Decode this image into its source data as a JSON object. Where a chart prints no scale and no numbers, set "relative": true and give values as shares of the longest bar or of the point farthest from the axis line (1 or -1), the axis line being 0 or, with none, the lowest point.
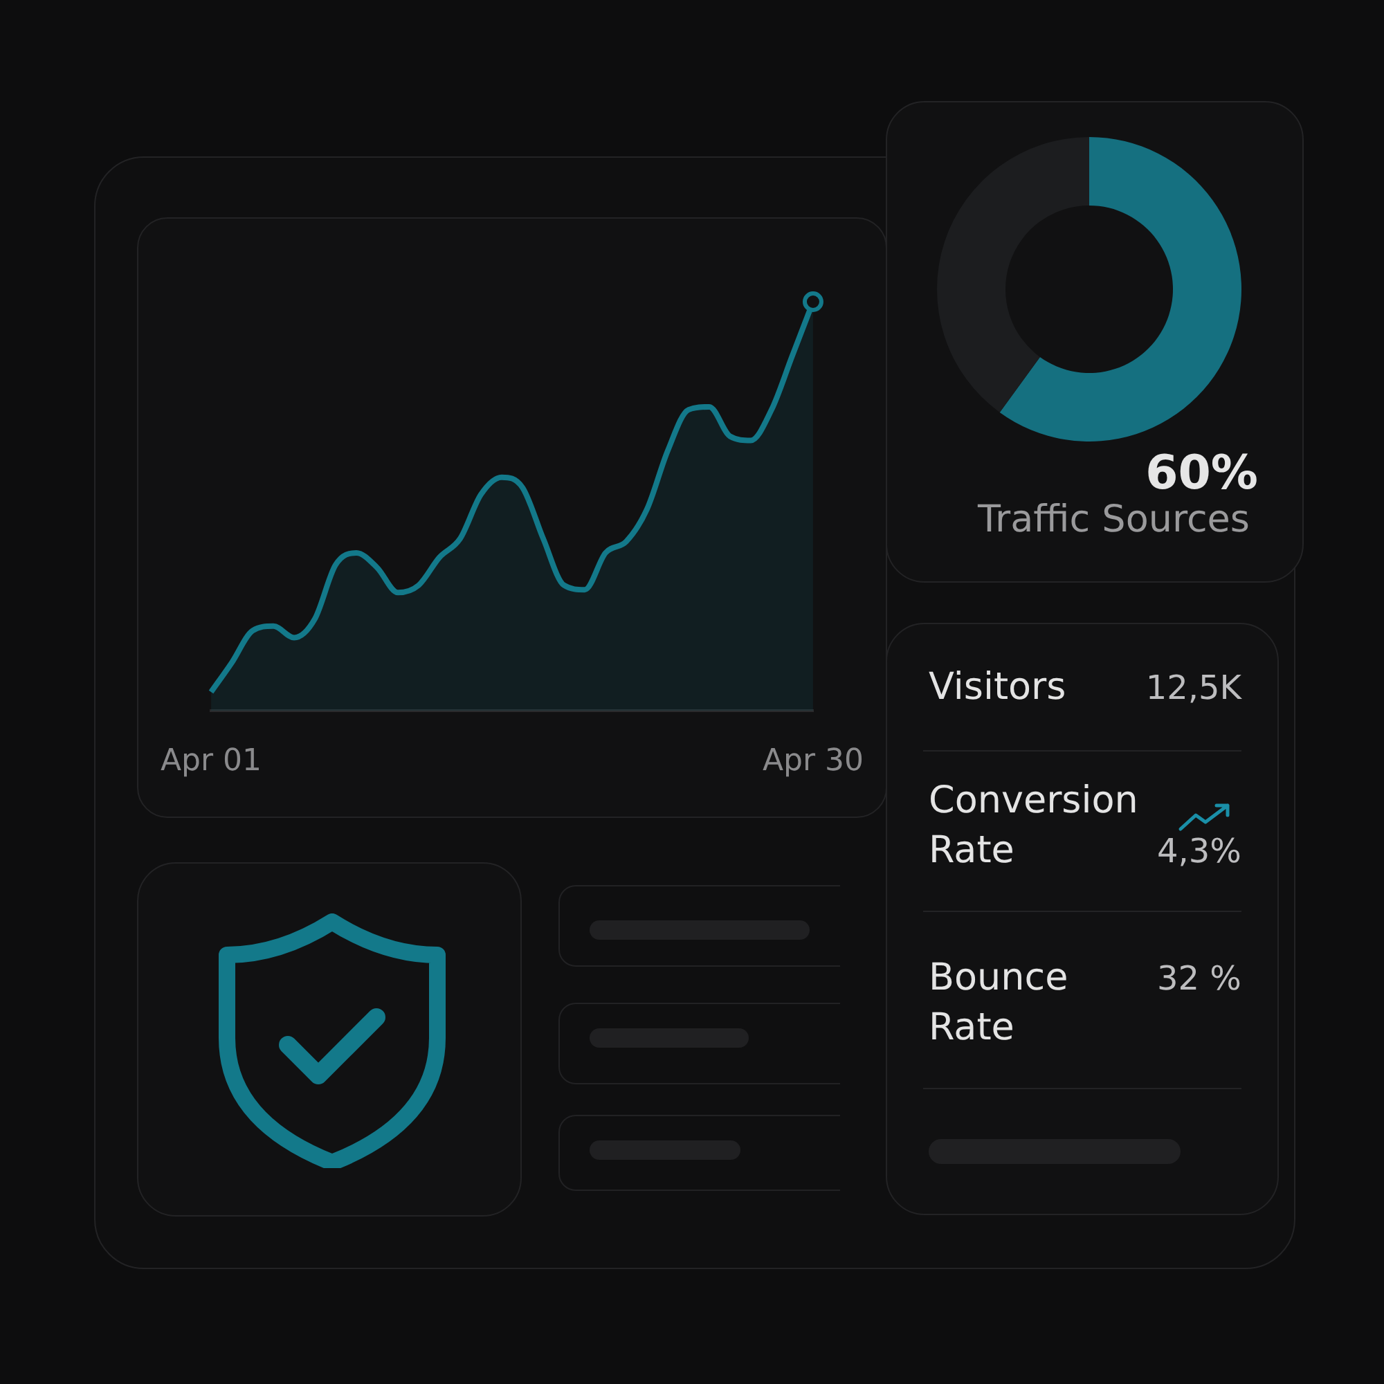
{
  "chart_data": [
    {
      "type": "area",
      "relative": true,
      "color": "#13798a",
      "categories": [
        "Apr 01",
        null,
        null,
        null,
        null,
        null,
        null,
        null,
        null,
        null,
        null,
        null,
        null,
        null,
        null,
        null,
        null,
        null,
        null,
        null,
        null,
        null,
        null,
        null,
        null,
        null,
        null,
        null,
        null,
        "Apr 30"
      ],
      "values": [
        0.046,
        0.118,
        0.196,
        0.207,
        0.179,
        0.225,
        0.357,
        0.386,
        0.35,
        0.289,
        0.307,
        0.375,
        0.421,
        0.529,
        0.571,
        0.546,
        0.421,
        0.307,
        0.296,
        0.386,
        0.414,
        0.493,
        0.636,
        0.736,
        0.743,
        0.671,
        0.661,
        0.736,
        0.868,
        1
      ]
    },
    {
      "type": "donut",
      "title": "Traffic Sources",
      "categories": [
        null,
        null
      ],
      "values": [
        60,
        40
      ],
      "colors": [
        "#157080",
        "#1c1d1f"
      ],
      "value_labels": [
        "60%",
        null
      ]
    },
    {
      "type": "other",
      "categories": [
        "Visitors",
        "Conversion Rate",
        "Bounce Rate"
      ],
      "value_labels": [
        "12,5K",
        "4,3%",
        "32 %"
      ]
    }
  ]
}
